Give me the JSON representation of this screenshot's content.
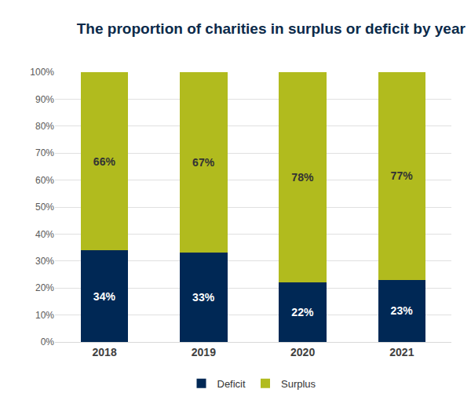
{
  "chart_data": {
    "type": "bar",
    "title": "The proportion of charities in surplus or deficit by year",
    "categories": [
      "2018",
      "2019",
      "2020",
      "2021"
    ],
    "series": [
      {
        "name": "Deficit",
        "color": "#002855",
        "values": [
          34,
          33,
          22,
          23
        ],
        "value_labels": [
          "34%",
          "33%",
          "22%",
          "23%"
        ]
      },
      {
        "name": "Surplus",
        "color": "#b1bb1e",
        "values": [
          66,
          67,
          78,
          77
        ],
        "value_labels": [
          "66%",
          "67%",
          "78%",
          "77%"
        ]
      }
    ],
    "stacked": true,
    "data_labels": true,
    "ylim": [
      0,
      100
    ],
    "yticks": [
      {
        "value": 0,
        "label": "0%"
      },
      {
        "value": 10,
        "label": "10%"
      },
      {
        "value": 20,
        "label": "20%"
      },
      {
        "value": 30,
        "label": "30%"
      },
      {
        "value": 40,
        "label": "40%"
      },
      {
        "value": 50,
        "label": "50%"
      },
      {
        "value": 60,
        "label": "60%"
      },
      {
        "value": 70,
        "label": "70%"
      },
      {
        "value": 80,
        "label": "80%"
      },
      {
        "value": 90,
        "label": "90%"
      },
      {
        "value": 100,
        "label": "100%"
      }
    ],
    "grid": true,
    "legend": "bottom"
  }
}
